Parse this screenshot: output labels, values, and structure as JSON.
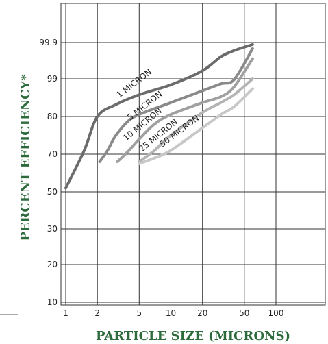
{
  "chart_data": {
    "type": "line",
    "title": "",
    "xlabel": "PARTICLE SIZE (MICRONS)",
    "ylabel": "PERCENT EFFICIENCY*",
    "x_scale": "log",
    "x_tick_labels": [
      "1",
      "2",
      "5",
      "10",
      "20",
      "50",
      "100"
    ],
    "x_ticks": [
      1,
      2,
      5,
      10,
      20,
      50,
      100
    ],
    "y_tick_labels": [
      "10",
      "20",
      "30",
      "50",
      "70",
      "80",
      "99",
      "99.9"
    ],
    "grid": true,
    "legend": "none",
    "series": [
      {
        "name": "1 MICRON",
        "color": "#6b6b6b",
        "x": [
          1,
          1.5,
          2,
          3,
          5,
          10,
          20,
          30,
          40,
          60
        ],
        "y": [
          52,
          71,
          80,
          86,
          91,
          96,
          99.2,
          99.55,
          99.7,
          99.85
        ]
      },
      {
        "name": "5 MICRON",
        "color": "#8a8a8a",
        "x": [
          2.1,
          2.5,
          3,
          4,
          5,
          7,
          10,
          20,
          30,
          40,
          60
        ],
        "y": [
          66,
          71,
          75,
          79,
          81,
          84,
          87,
          93,
          96.5,
          98.6,
          99.75
        ]
      },
      {
        "name": "10 MICRON",
        "color": "#a0a0a0",
        "x": [
          3.1,
          4,
          5,
          7,
          10,
          20,
          30,
          40,
          60
        ],
        "y": [
          66,
          71,
          74,
          78,
          81,
          87,
          90,
          95,
          99.5
        ]
      },
      {
        "name": "25 MICRON",
        "color": "#b4b4b4",
        "x": [
          5,
          7,
          10,
          20,
          30,
          40,
          60
        ],
        "y": [
          66,
          71,
          75,
          82,
          87,
          91,
          99
        ]
      },
      {
        "name": "50 MICRON",
        "color": "#c8c8c8",
        "x": [
          5,
          7,
          10,
          20,
          30,
          40,
          60
        ],
        "y": [
          65,
          68,
          71,
          77,
          81,
          85,
          94
        ]
      }
    ]
  }
}
